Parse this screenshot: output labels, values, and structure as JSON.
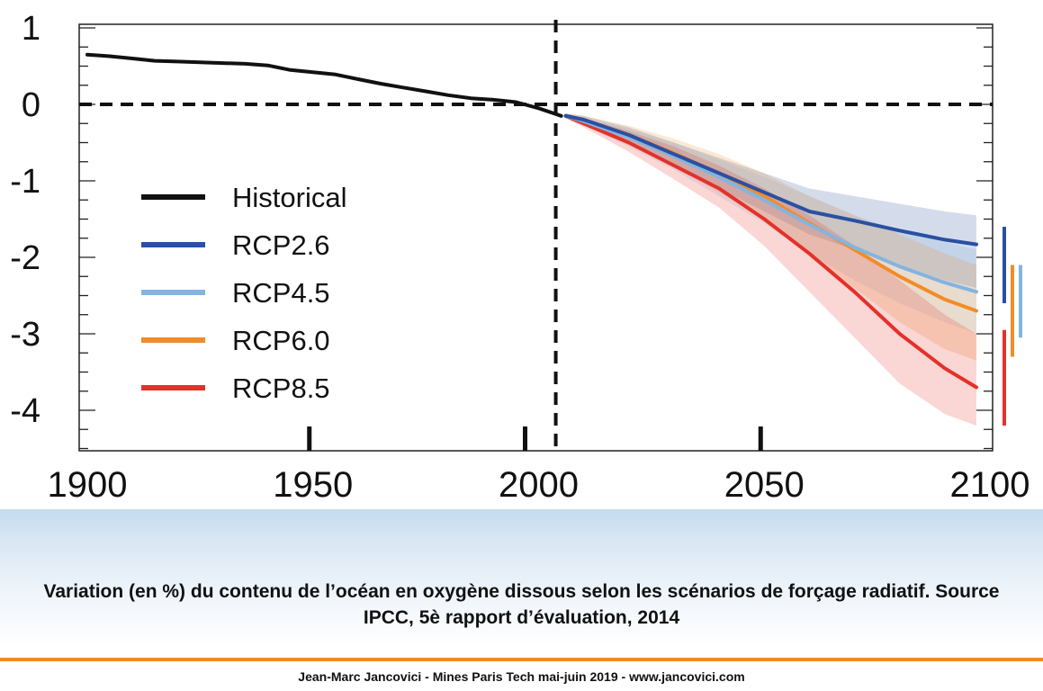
{
  "chart_data": {
    "type": "line",
    "title": "",
    "xlabel": "",
    "ylabel": "",
    "xlim": [
      1900,
      2100
    ],
    "ylim": [
      -4.5,
      1
    ],
    "x_ticks": [
      "1900",
      "1950",
      "2000",
      "2050",
      "2100"
    ],
    "y_ticks": [
      "1",
      "0",
      "-1",
      "-2",
      "-3",
      "-4"
    ],
    "grid": false,
    "legend_position": "left",
    "reference_lines": {
      "y_dashed": 0,
      "x_dashed": 2005
    },
    "series": [
      {
        "name": "Historical",
        "color": "#111111",
        "x": [
          1900,
          1905,
          1910,
          1915,
          1920,
          1925,
          1930,
          1935,
          1940,
          1945,
          1950,
          1955,
          1960,
          1965,
          1970,
          1975,
          1980,
          1985,
          1990,
          1995,
          2000,
          2005
        ],
        "y": [
          0.65,
          0.63,
          0.6,
          0.57,
          0.56,
          0.55,
          0.54,
          0.53,
          0.51,
          0.45,
          0.42,
          0.39,
          0.33,
          0.27,
          0.22,
          0.17,
          0.12,
          0.08,
          0.06,
          0.03,
          -0.05,
          -0.15
        ]
      },
      {
        "name": "RCP2.6",
        "color": "#2a50a2",
        "x": [
          2006,
          2010,
          2020,
          2030,
          2040,
          2050,
          2060,
          2070,
          2080,
          2090,
          2097
        ],
        "y": [
          -0.15,
          -0.2,
          -0.4,
          -0.65,
          -0.9,
          -1.15,
          -1.4,
          -1.52,
          -1.65,
          -1.77,
          -1.83
        ],
        "band_low": [
          -0.18,
          -0.25,
          -0.5,
          -0.8,
          -1.1,
          -1.4,
          -1.7,
          -1.9,
          -2.1,
          -2.3,
          -2.4
        ],
        "band_high": [
          -0.12,
          -0.15,
          -0.3,
          -0.5,
          -0.7,
          -0.9,
          -1.1,
          -1.2,
          -1.3,
          -1.4,
          -1.45
        ],
        "range_bar": [
          -1.6,
          -2.6
        ]
      },
      {
        "name": "RCP4.5",
        "color": "#84b4e0",
        "x": [
          2006,
          2010,
          2020,
          2030,
          2040,
          2050,
          2060,
          2070,
          2080,
          2090,
          2097
        ],
        "y": [
          -0.15,
          -0.22,
          -0.43,
          -0.68,
          -0.95,
          -1.25,
          -1.57,
          -1.87,
          -2.12,
          -2.33,
          -2.45
        ],
        "band_low": [
          -0.18,
          -0.27,
          -0.55,
          -0.85,
          -1.2,
          -1.55,
          -1.95,
          -2.3,
          -2.6,
          -2.85,
          -3.0
        ],
        "band_high": [
          -0.12,
          -0.17,
          -0.32,
          -0.5,
          -0.72,
          -0.95,
          -1.2,
          -1.45,
          -1.65,
          -1.8,
          -1.9
        ],
        "range_bar": [
          -2.1,
          -3.05
        ]
      },
      {
        "name": "RCP6.0",
        "color": "#f28c28",
        "x": [
          2006,
          2010,
          2020,
          2030,
          2040,
          2050,
          2060,
          2070,
          2080,
          2090,
          2097
        ],
        "y": [
          -0.15,
          -0.2,
          -0.4,
          -0.64,
          -0.9,
          -1.2,
          -1.55,
          -1.9,
          -2.25,
          -2.55,
          -2.7
        ],
        "band_low": [
          -0.18,
          -0.25,
          -0.52,
          -0.8,
          -1.15,
          -1.5,
          -1.95,
          -2.4,
          -2.85,
          -3.2,
          -3.35
        ],
        "band_high": [
          -0.12,
          -0.15,
          -0.28,
          -0.45,
          -0.65,
          -0.9,
          -1.2,
          -1.45,
          -1.7,
          -1.95,
          -2.1
        ],
        "range_bar": [
          -2.1,
          -3.3
        ]
      },
      {
        "name": "RCP8.5",
        "color": "#e4312a",
        "x": [
          2006,
          2010,
          2020,
          2030,
          2040,
          2050,
          2060,
          2070,
          2080,
          2090,
          2097
        ],
        "y": [
          -0.15,
          -0.25,
          -0.5,
          -0.8,
          -1.1,
          -1.5,
          -1.95,
          -2.45,
          -3.0,
          -3.45,
          -3.7
        ],
        "band_low": [
          -0.18,
          -0.3,
          -0.62,
          -0.98,
          -1.35,
          -1.85,
          -2.45,
          -3.05,
          -3.65,
          -4.05,
          -4.2
        ],
        "band_high": [
          -0.12,
          -0.18,
          -0.35,
          -0.55,
          -0.8,
          -1.1,
          -1.45,
          -1.85,
          -2.3,
          -2.75,
          -3.0
        ],
        "range_bar": [
          -2.95,
          -4.2
        ]
      }
    ]
  },
  "caption": "Variation (en %) du contenu de l’océan en oxygène dissous selon les scénarios de forçage radiatif. Source IPCC, 5è rapport d’évaluation, 2014",
  "credit": "Jean-Marc Jancovici - Mines Paris Tech mai-juin 2019 - www.jancovici.com",
  "colors": {
    "footer_rule": "#f28c1e",
    "footer_band": "#c4dbef"
  }
}
